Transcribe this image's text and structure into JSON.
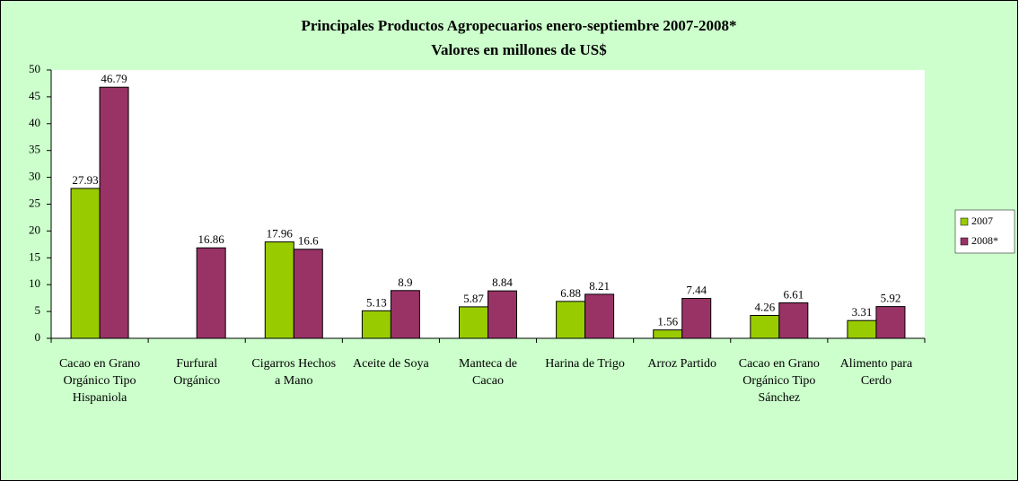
{
  "chart_data": {
    "type": "bar",
    "title": "Principales Productos Agropecuarios enero-septiembre 2007-2008*",
    "subtitle": "Valores en millones de US$",
    "categories": [
      "Cacao en Grano Orgánico Tipo Hispaniola",
      "Furfural Orgánico",
      "Cigarros Hechos a Mano",
      "Aceite de Soya",
      "Manteca de Cacao",
      "Harina de Trigo",
      "Arroz Partido",
      "Cacao en Grano Orgánico Tipo Sánchez",
      "Alimento para Cerdo"
    ],
    "series": [
      {
        "name": "2007",
        "color": "#99cc00",
        "values": [
          27.93,
          null,
          17.96,
          5.13,
          5.87,
          6.88,
          1.56,
          4.26,
          3.31
        ]
      },
      {
        "name": "2008*",
        "color": "#993366",
        "values": [
          46.79,
          16.86,
          16.6,
          8.9,
          8.84,
          8.21,
          7.44,
          6.61,
          5.92
        ]
      }
    ],
    "ylim": [
      0,
      50
    ],
    "yticks": [
      0,
      5,
      10,
      15,
      20,
      25,
      30,
      35,
      40,
      45,
      50
    ],
    "legend": "right"
  }
}
